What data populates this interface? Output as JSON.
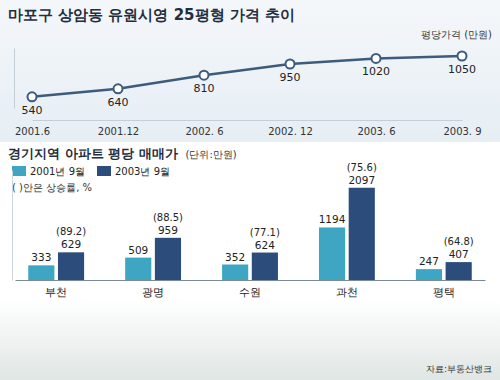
{
  "chart_data": [
    {
      "type": "line",
      "title": "마포구 상암동 유원시영 25평형 가격 추이",
      "y_label": "평당가격 (만원)",
      "categories": [
        "2001.6",
        "2001.12",
        "2002. 6",
        "2002. 12",
        "2003. 6",
        "2003. 9"
      ],
      "values": [
        540,
        640,
        810,
        950,
        1020,
        1050
      ],
      "color": "#3d5b7a",
      "marker": "circle",
      "data_labels": true,
      "tick_labels": "x",
      "grid": false,
      "ylim": [
        400,
        1150
      ]
    },
    {
      "type": "bar",
      "title": "경기지역 아파트 평당 매매가",
      "subtitle": "(단위:만원)",
      "note": "( )안은 상승률, %",
      "source": "자료:부동산뱅크",
      "categories": [
        "부천",
        "광명",
        "수원",
        "과천",
        "평택"
      ],
      "series": [
        {
          "name": "2001년 9월",
          "color": "#3ea6c2",
          "values": [
            333,
            509,
            352,
            1194,
            247
          ]
        },
        {
          "name": "2003년 9월",
          "color": "#2c4d7c",
          "values": [
            629,
            959,
            624,
            2097,
            407
          ]
        }
      ],
      "annotations": [
        "(89.2)",
        "(88.5)",
        "(77.1)",
        "(75.6)",
        "(64.8)"
      ],
      "data_labels": true,
      "tick_labels": "x",
      "grid": false,
      "legend": "top-left",
      "ylim": [
        0,
        2500
      ]
    }
  ]
}
